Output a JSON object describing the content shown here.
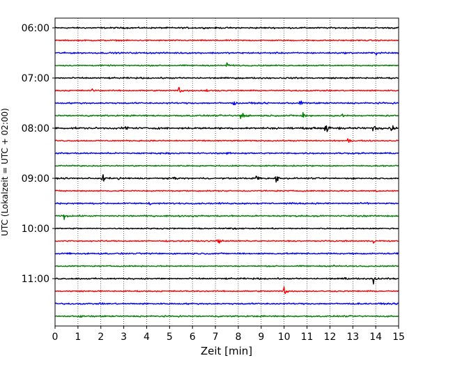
{
  "chart_data": {
    "type": "line",
    "title": "",
    "xlabel": "Zeit  [min]",
    "ylabel": "UTC (Lokalzeit = UTC + 02:00)",
    "xlim": [
      0,
      15
    ],
    "x_ticks": [
      0,
      1,
      2,
      3,
      4,
      5,
      6,
      7,
      8,
      9,
      10,
      11,
      12,
      13,
      14,
      15
    ],
    "x_tick_labels": [
      "0",
      "1",
      "2",
      "3",
      "4",
      "5",
      "6",
      "7",
      "8",
      "9",
      "10",
      "11",
      "12",
      "13",
      "14",
      "15"
    ],
    "y_ticks": [
      {
        "label": "06:00",
        "row": 0
      },
      {
        "label": "07:00",
        "row": 4
      },
      {
        "label": "08:00",
        "row": 8
      },
      {
        "label": "09:00",
        "row": 12
      },
      {
        "label": "10:00",
        "row": 16
      },
      {
        "label": "11:00",
        "row": 20
      }
    ],
    "grid": {
      "x": true,
      "y": false,
      "style": "dotted"
    },
    "row_minutes": 15,
    "colors": [
      "#000000",
      "#ff0000",
      "#0000ff",
      "#008000"
    ],
    "series": [
      {
        "start": "06:00",
        "color": "#000000",
        "noise": 0.12,
        "events": []
      },
      {
        "start": "06:15",
        "color": "#ff0000",
        "noise": 0.1,
        "events": []
      },
      {
        "start": "06:30",
        "color": "#0000ff",
        "noise": 0.12,
        "events": [
          {
            "t": 14.0,
            "amp": 0.4
          }
        ]
      },
      {
        "start": "06:45",
        "color": "#008000",
        "noise": 0.1,
        "events": [
          {
            "t": 7.5,
            "amp": 0.6
          }
        ]
      },
      {
        "start": "07:00",
        "color": "#000000",
        "noise": 0.12,
        "events": []
      },
      {
        "start": "07:15",
        "color": "#ff0000",
        "noise": 0.1,
        "events": [
          {
            "t": 1.6,
            "amp": 0.35
          },
          {
            "t": 5.4,
            "amp": 0.9
          },
          {
            "t": 6.6,
            "amp": 0.3
          }
        ]
      },
      {
        "start": "07:30",
        "color": "#0000ff",
        "noise": 0.12,
        "events": [
          {
            "t": 7.8,
            "amp": 0.5
          },
          {
            "t": 10.7,
            "amp": 0.7
          }
        ]
      },
      {
        "start": "07:45",
        "color": "#008000",
        "noise": 0.12,
        "events": [
          {
            "t": 8.1,
            "amp": 1.2
          },
          {
            "t": 10.8,
            "amp": 1.3
          },
          {
            "t": 12.5,
            "amp": 0.4
          }
        ]
      },
      {
        "start": "08:00",
        "color": "#000000",
        "noise": 0.15,
        "events": [
          {
            "t": 3.1,
            "amp": 0.5
          },
          {
            "t": 11.8,
            "amp": 1.2
          },
          {
            "t": 12.4,
            "amp": 0.6
          },
          {
            "t": 13.9,
            "amp": 0.9
          },
          {
            "t": 14.7,
            "amp": 0.8
          }
        ]
      },
      {
        "start": "08:15",
        "color": "#ff0000",
        "noise": 0.1,
        "events": [
          {
            "t": 12.8,
            "amp": 0.6
          }
        ]
      },
      {
        "start": "08:30",
        "color": "#0000ff",
        "noise": 0.12,
        "events": [
          {
            "t": 7.5,
            "amp": 0.25
          }
        ]
      },
      {
        "start": "08:45",
        "color": "#008000",
        "noise": 0.1,
        "events": []
      },
      {
        "start": "09:00",
        "color": "#000000",
        "noise": 0.12,
        "events": [
          {
            "t": 2.05,
            "amp": 1.3
          },
          {
            "t": 2.8,
            "amp": 0.4
          },
          {
            "t": 5.2,
            "amp": 0.35
          },
          {
            "t": 8.8,
            "amp": 0.9
          },
          {
            "t": 9.65,
            "amp": 1.0
          }
        ]
      },
      {
        "start": "09:15",
        "color": "#ff0000",
        "noise": 0.1,
        "events": [
          {
            "t": 14.0,
            "amp": 0.3
          }
        ]
      },
      {
        "start": "09:30",
        "color": "#0000ff",
        "noise": 0.12,
        "events": [
          {
            "t": 4.1,
            "amp": 0.35
          },
          {
            "t": 13.6,
            "amp": 0.3
          }
        ]
      },
      {
        "start": "09:45",
        "color": "#008000",
        "noise": 0.12,
        "events": [
          {
            "t": 0.35,
            "amp": 0.9
          },
          {
            "t": 6.0,
            "amp": 0.25
          }
        ]
      },
      {
        "start": "10:00",
        "color": "#000000",
        "noise": 0.1,
        "events": [
          {
            "t": 7.8,
            "amp": 0.3
          }
        ]
      },
      {
        "start": "10:15",
        "color": "#ff0000",
        "noise": 0.1,
        "events": [
          {
            "t": 7.1,
            "amp": 0.8
          },
          {
            "t": 13.9,
            "amp": 0.3
          }
        ]
      },
      {
        "start": "10:30",
        "color": "#0000ff",
        "noise": 0.12,
        "events": [
          {
            "t": 0.5,
            "amp": 0.4
          },
          {
            "t": 14.9,
            "amp": 0.3
          }
        ]
      },
      {
        "start": "10:45",
        "color": "#008000",
        "noise": 0.1,
        "events": [
          {
            "t": 12.2,
            "amp": 0.4
          }
        ]
      },
      {
        "start": "11:00",
        "color": "#000000",
        "noise": 0.12,
        "events": [
          {
            "t": 12.6,
            "amp": 0.4
          },
          {
            "t": 13.9,
            "amp": 1.0
          }
        ]
      },
      {
        "start": "11:15",
        "color": "#ff0000",
        "noise": 0.1,
        "events": [
          {
            "t": 10.0,
            "amp": 1.1
          }
        ]
      },
      {
        "start": "11:30",
        "color": "#0000ff",
        "noise": 0.12,
        "events": []
      },
      {
        "start": "11:45",
        "color": "#008000",
        "noise": 0.12,
        "events": [
          {
            "t": 1.1,
            "amp": 0.4
          }
        ]
      }
    ]
  }
}
